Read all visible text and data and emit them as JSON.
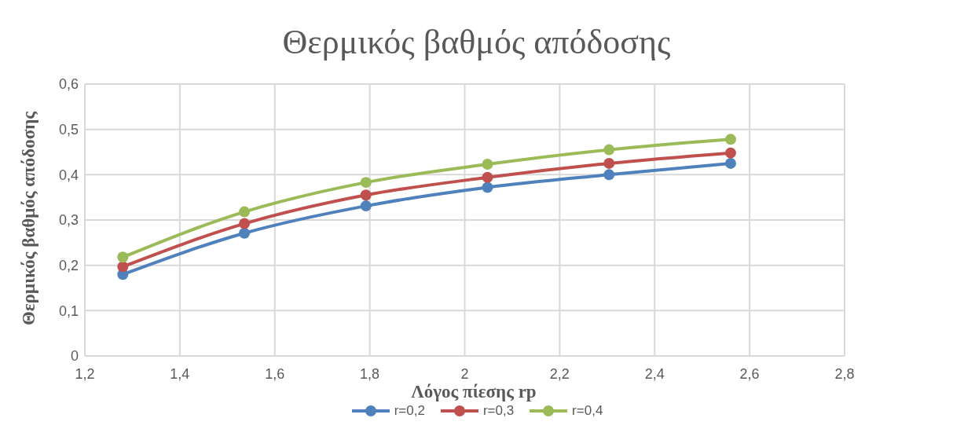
{
  "chart_data": {
    "type": "line",
    "title": "Θερμικός βαθμός απόδοσης",
    "xlabel": "Λόγος πίεσης rp",
    "ylabel": "Θερμικός βαθμός απόδοσης",
    "x": [
      1.28,
      1.536,
      1.792,
      2.048,
      2.304,
      2.56
    ],
    "series": [
      {
        "name": "r=0,2",
        "color": "#4f81bd",
        "values": [
          0.18,
          0.271,
          0.331,
          0.372,
          0.4,
          0.425
        ]
      },
      {
        "name": "r=0,3",
        "color": "#c0504d",
        "values": [
          0.197,
          0.292,
          0.355,
          0.394,
          0.425,
          0.448
        ]
      },
      {
        "name": "r=0,4",
        "color": "#9bbb59",
        "values": [
          0.218,
          0.318,
          0.383,
          0.423,
          0.455,
          0.478
        ]
      }
    ],
    "xlim": [
      1.2,
      2.8
    ],
    "xticks": [
      {
        "value": 1.2,
        "label": "1,2"
      },
      {
        "value": 1.4,
        "label": "1,4"
      },
      {
        "value": 1.6,
        "label": "1,6"
      },
      {
        "value": 1.8,
        "label": "1,8"
      },
      {
        "value": 2,
        "label": "2"
      },
      {
        "value": 2.2,
        "label": "2,2"
      },
      {
        "value": 2.4,
        "label": "2,4"
      },
      {
        "value": 2.6,
        "label": "2,6"
      },
      {
        "value": 2.8,
        "label": "2,8"
      }
    ],
    "ylim": [
      0,
      0.6
    ],
    "yticks": [
      0,
      {
        "value": 0.1,
        "label": "0,1"
      },
      {
        "value": 0.2,
        "label": "0,2"
      },
      {
        "value": 0.3,
        "label": "0,3"
      },
      {
        "value": 0.4,
        "label": "0,4"
      },
      {
        "value": 0.5,
        "label": "0,5"
      },
      {
        "value": 0.6,
        "label": "0,6"
      }
    ],
    "grid": true,
    "legend": "bottom",
    "marker": "circle",
    "line_style": "solid"
  }
}
